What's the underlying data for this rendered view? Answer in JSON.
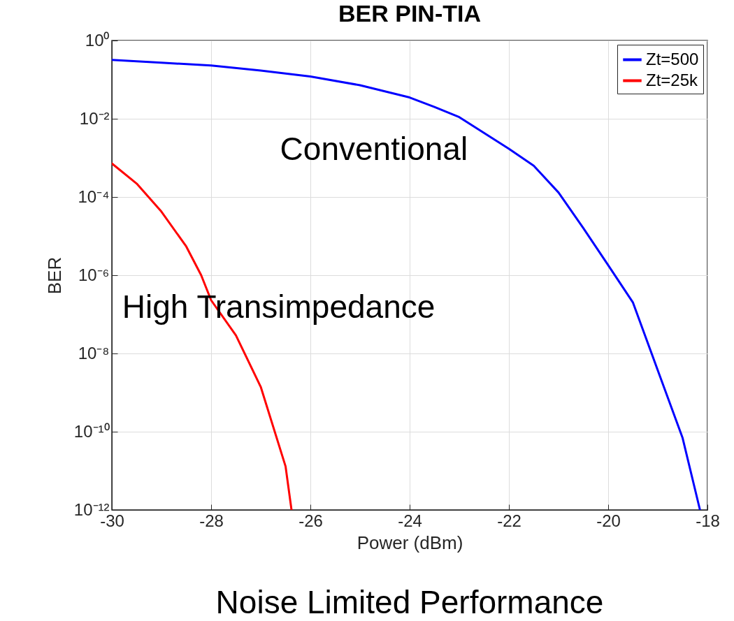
{
  "chart_data": {
    "type": "line",
    "title": "BER PIN-TIA",
    "xlabel": "Power (dBm)",
    "ylabel": "BER",
    "xlim": [
      -30,
      -18
    ],
    "xticks": [
      -30,
      -28,
      -26,
      -24,
      -22,
      -20,
      -18
    ],
    "ylim": [
      1e-12,
      1
    ],
    "yticks": [
      {
        "value": 1,
        "label": "10⁰"
      },
      {
        "value": 0.01,
        "label": "10⁻²"
      },
      {
        "value": 0.0001,
        "label": "10⁻⁴"
      },
      {
        "value": 1e-06,
        "label": "10⁻⁶"
      },
      {
        "value": 1e-08,
        "label": "10⁻⁸"
      },
      {
        "value": 1e-10,
        "label": "10⁻¹⁰"
      },
      {
        "value": 1e-12,
        "label": "10⁻¹²"
      }
    ],
    "log": "y",
    "grid": true,
    "legend": "top right",
    "series": [
      {
        "name": "Zt=500",
        "color": "#0000ff",
        "x": [
          -30,
          -29,
          -28,
          -27,
          -26,
          -25,
          -24,
          -23.5,
          -23,
          -22,
          -21.5,
          -21,
          -20.5,
          -20,
          -19.5,
          -19,
          -18.5,
          -18.15
        ],
        "values": [
          0.32,
          0.27,
          0.23,
          0.17,
          0.12,
          0.072,
          0.035,
          0.02,
          0.011,
          0.0017,
          0.00063,
          0.00013,
          1.6e-05,
          1.8e-06,
          2e-07,
          3.7e-09,
          6.9e-11,
          1e-12
        ]
      },
      {
        "name": "Zt=25k",
        "color": "#ff0000",
        "x": [
          -30,
          -29.5,
          -29,
          -28.5,
          -28.2,
          -28,
          -27.5,
          -27,
          -26.5,
          -26.38
        ],
        "values": [
          0.00072,
          0.00022,
          4.2e-05,
          5.4e-06,
          1e-06,
          2.3e-07,
          2.9e-08,
          1.4e-09,
          1.3e-11,
          1e-12
        ]
      }
    ],
    "annotations": [
      "Conventional",
      "High Transimpedance",
      "Noise Limited Performance"
    ]
  }
}
